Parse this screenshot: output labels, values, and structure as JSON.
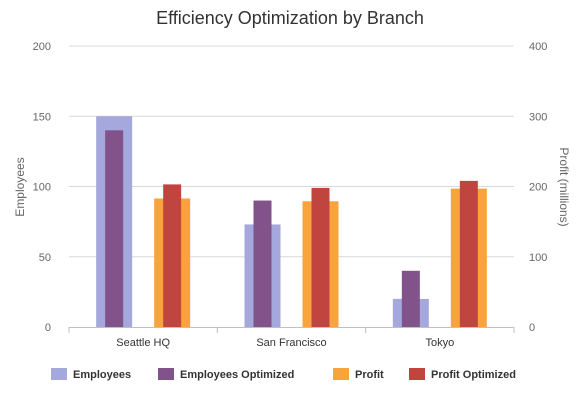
{
  "chart_data": {
    "type": "bar",
    "title": "Efficiency Optimization by Branch",
    "categories": [
      "Seattle HQ",
      "San Francisco",
      "Tokyo"
    ],
    "y_left": {
      "label": "Employees",
      "range": [
        0,
        200
      ],
      "ticks": [
        "0",
        "50",
        "100",
        "150",
        "200"
      ]
    },
    "y_right": {
      "label": "Profit (millions)",
      "range": [
        0,
        400
      ],
      "ticks": [
        "0",
        "100",
        "200",
        "300",
        "400"
      ]
    },
    "series": [
      {
        "name": "Employees",
        "axis": "left",
        "color": "#a5a8dc",
        "values": [
          150,
          73,
          20
        ]
      },
      {
        "name": "Employees Optimized",
        "axis": "left",
        "color": "#82528a",
        "values": [
          140,
          90,
          40
        ]
      },
      {
        "name": "Profit",
        "axis": "right",
        "color": "#f9a43a",
        "values": [
          183,
          179,
          197
        ]
      },
      {
        "name": "Profit Optimized",
        "axis": "right",
        "color": "#c0453f",
        "values": [
          203,
          198,
          208
        ]
      }
    ],
    "grid": true,
    "legend_position": "bottom"
  }
}
